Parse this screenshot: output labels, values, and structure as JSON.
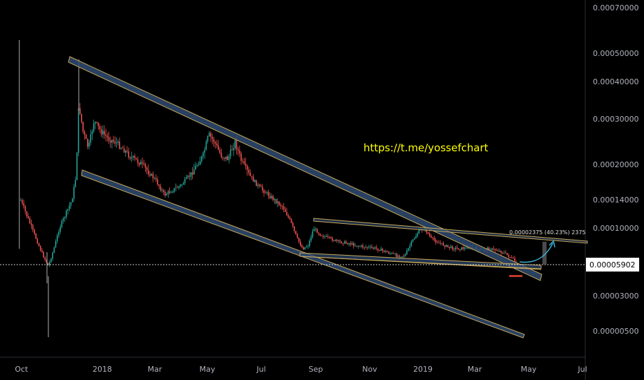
{
  "chart_data": {
    "type": "candlestick",
    "y_scale": "log",
    "y_axis_ticks": [
      "0.00070000",
      "0.00050000",
      "0.00040000",
      "0.00030000",
      "0.00020000",
      "0.00014000",
      "0.00010000",
      "0.00003000",
      "0.00000500"
    ],
    "x_axis_ticks": [
      "Oct",
      "2018",
      "Mar",
      "May",
      "Jul",
      "Sep",
      "Nov",
      "2019",
      "Mar",
      "May",
      "Jul"
    ],
    "current_price": "0.00005902",
    "annotation_link": "https://t.me/yossefchart",
    "measure_label": "0.00002375 (40.23%) 2375",
    "colors": {
      "up": "#26a69a",
      "down": "#ef5350",
      "channel_fill": "#2f4b72",
      "channel_edge": "#c8a85a",
      "arrow": "#3ab0d8"
    }
  }
}
